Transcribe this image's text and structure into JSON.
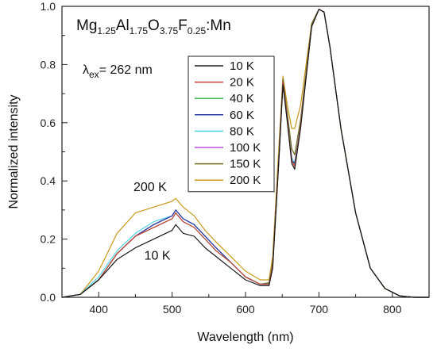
{
  "chart_data": {
    "type": "line",
    "title": "",
    "xlabel": "Wavelength (nm)",
    "ylabel": "Normalized intensity",
    "xlim": [
      350,
      850
    ],
    "ylim": [
      0.0,
      1.0
    ],
    "x_ticks": [
      400,
      500,
      600,
      700,
      800
    ],
    "y_ticks": [
      0.0,
      0.2,
      0.4,
      0.6,
      0.8,
      1.0
    ],
    "x_tick_labels": [
      "400",
      "500",
      "600",
      "700",
      "800"
    ],
    "y_tick_labels": [
      "0.0",
      "0.2",
      "0.4",
      "0.6",
      "0.8",
      "1.0"
    ],
    "grid": false,
    "legend_position": "center-right",
    "x": [
      350,
      375,
      400,
      425,
      450,
      475,
      500,
      505,
      515,
      530,
      545,
      560,
      580,
      600,
      620,
      632,
      637,
      645,
      651,
      657,
      663,
      667,
      675,
      690,
      700,
      707,
      715,
      730,
      750,
      770,
      790,
      810,
      830,
      850
    ],
    "series": [
      {
        "name": "10 K",
        "color": "#1a1a1a",
        "values": [
          0.0,
          0.01,
          0.06,
          0.13,
          0.17,
          0.2,
          0.23,
          0.25,
          0.22,
          0.21,
          0.17,
          0.14,
          0.1,
          0.06,
          0.04,
          0.04,
          0.1,
          0.45,
          0.73,
          0.6,
          0.46,
          0.44,
          0.58,
          0.93,
          0.99,
          0.98,
          0.86,
          0.58,
          0.29,
          0.1,
          0.03,
          0.005,
          0.0,
          0.0
        ]
      },
      {
        "name": "20 K",
        "color": "#c8403a",
        "values": [
          0.0,
          0.01,
          0.06,
          0.15,
          0.21,
          0.24,
          0.27,
          0.29,
          0.26,
          0.24,
          0.2,
          0.16,
          0.12,
          0.07,
          0.045,
          0.045,
          0.11,
          0.46,
          0.74,
          0.61,
          0.47,
          0.45,
          0.59,
          0.93,
          0.99,
          0.98,
          0.86,
          0.58,
          0.29,
          0.1,
          0.03,
          0.005,
          0.0,
          0.0
        ]
      },
      {
        "name": "40 K",
        "color": "#3ab54a",
        "values": [
          0.0,
          0.01,
          0.06,
          0.15,
          0.21,
          0.24,
          0.27,
          0.29,
          0.26,
          0.24,
          0.2,
          0.16,
          0.12,
          0.07,
          0.045,
          0.045,
          0.11,
          0.46,
          0.74,
          0.61,
          0.47,
          0.45,
          0.59,
          0.93,
          0.99,
          0.98,
          0.86,
          0.58,
          0.29,
          0.1,
          0.03,
          0.005,
          0.0,
          0.0
        ]
      },
      {
        "name": "60 K",
        "color": "#2b3aa8",
        "values": [
          0.0,
          0.01,
          0.06,
          0.15,
          0.21,
          0.25,
          0.28,
          0.3,
          0.27,
          0.25,
          0.21,
          0.17,
          0.12,
          0.07,
          0.045,
          0.045,
          0.11,
          0.46,
          0.74,
          0.61,
          0.47,
          0.46,
          0.59,
          0.93,
          0.99,
          0.98,
          0.86,
          0.58,
          0.29,
          0.1,
          0.03,
          0.005,
          0.0,
          0.0
        ]
      },
      {
        "name": "80 K",
        "color": "#4fd6e8",
        "values": [
          0.0,
          0.01,
          0.07,
          0.16,
          0.22,
          0.26,
          0.28,
          0.3,
          0.27,
          0.25,
          0.21,
          0.17,
          0.12,
          0.07,
          0.045,
          0.045,
          0.11,
          0.46,
          0.74,
          0.61,
          0.48,
          0.46,
          0.59,
          0.93,
          0.99,
          0.98,
          0.86,
          0.58,
          0.29,
          0.1,
          0.03,
          0.005,
          0.0,
          0.0
        ]
      },
      {
        "name": "100 K",
        "color": "#c44ee0",
        "values": [
          0.0,
          0.01,
          0.06,
          0.15,
          0.21,
          0.25,
          0.28,
          0.3,
          0.27,
          0.25,
          0.21,
          0.17,
          0.12,
          0.07,
          0.045,
          0.045,
          0.11,
          0.46,
          0.74,
          0.61,
          0.48,
          0.46,
          0.59,
          0.93,
          0.99,
          0.98,
          0.86,
          0.58,
          0.29,
          0.1,
          0.03,
          0.005,
          0.0,
          0.0
        ]
      },
      {
        "name": "150 K",
        "color": "#6b6b1e",
        "values": [
          0.0,
          0.01,
          0.06,
          0.15,
          0.21,
          0.25,
          0.28,
          0.3,
          0.27,
          0.25,
          0.21,
          0.17,
          0.12,
          0.07,
          0.045,
          0.05,
          0.12,
          0.47,
          0.75,
          0.63,
          0.51,
          0.49,
          0.61,
          0.94,
          0.99,
          0.98,
          0.86,
          0.58,
          0.29,
          0.1,
          0.03,
          0.005,
          0.0,
          0.0
        ]
      },
      {
        "name": "200 K",
        "color": "#c9981c",
        "values": [
          0.0,
          0.01,
          0.09,
          0.22,
          0.29,
          0.31,
          0.33,
          0.34,
          0.31,
          0.28,
          0.23,
          0.19,
          0.14,
          0.09,
          0.06,
          0.06,
          0.14,
          0.5,
          0.76,
          0.66,
          0.58,
          0.58,
          0.66,
          0.94,
          0.99,
          0.98,
          0.86,
          0.58,
          0.29,
          0.1,
          0.03,
          0.005,
          0.0,
          0.0
        ]
      }
    ],
    "annotations": [
      {
        "text": "200 K",
        "x": 470,
        "y": 0.365
      },
      {
        "text": "10 K",
        "x": 480,
        "y": 0.13
      }
    ]
  },
  "formula": {
    "parts": [
      {
        "text": "Mg",
        "sub": false
      },
      {
        "text": "1.25",
        "sub": true
      },
      {
        "text": "Al",
        "sub": false
      },
      {
        "text": "1.75",
        "sub": true
      },
      {
        "text": "O",
        "sub": false
      },
      {
        "text": "3.75",
        "sub": true
      },
      {
        "text": "F",
        "sub": false
      },
      {
        "text": "0.25",
        "sub": true
      },
      {
        "text": ":Mn",
        "sub": false
      }
    ]
  },
  "excitation": {
    "symbol": "λ",
    "subscript": "ex",
    "value": "= 262 nm"
  }
}
